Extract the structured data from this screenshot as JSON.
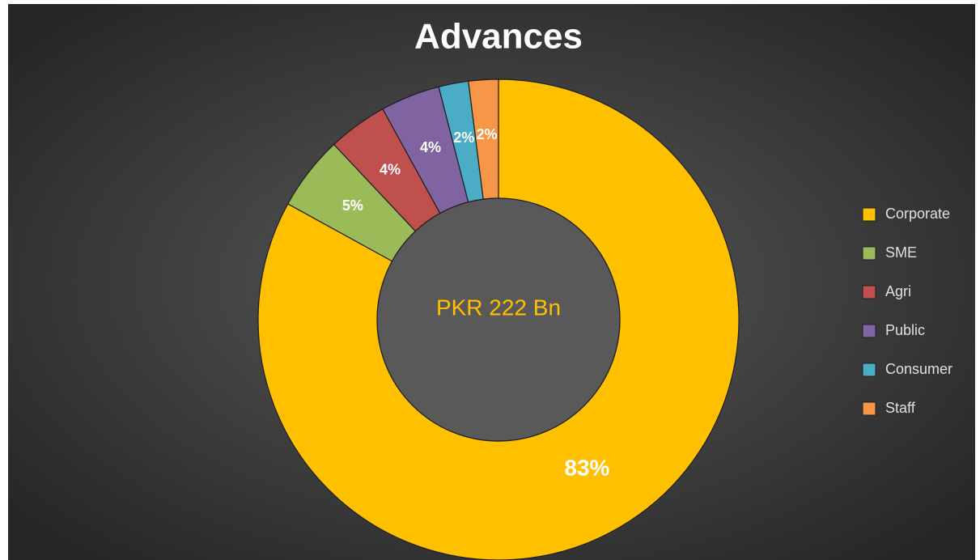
{
  "chart_data": {
    "type": "donut",
    "title": "Advances",
    "center_label": "PKR 222 Bn",
    "categories": [
      "Corporate",
      "SME",
      "Agri",
      "Public",
      "Consumer",
      "Staff"
    ],
    "values": [
      83,
      5,
      4,
      4,
      2,
      2
    ],
    "value_labels": [
      "83%",
      "5%",
      "4%",
      "4%",
      "2%",
      "2%"
    ],
    "colors": [
      "#FFC000",
      "#9BBB59",
      "#C0504D",
      "#8064A2",
      "#4BACC6",
      "#F79646"
    ],
    "legend": "right"
  }
}
